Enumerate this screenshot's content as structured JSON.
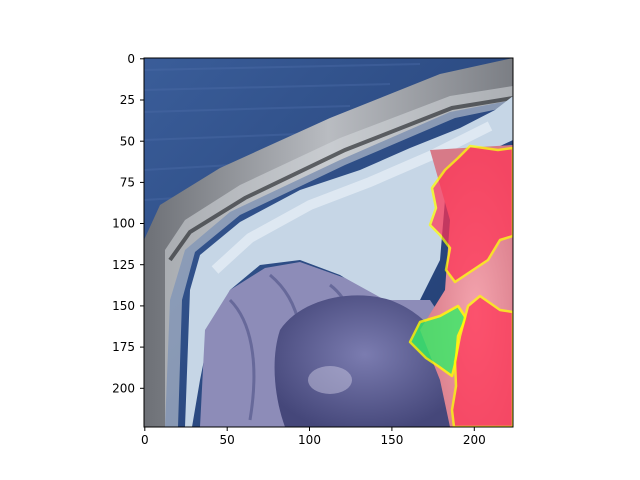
{
  "figure": {
    "type": "image-with-segmentation-overlay",
    "x_ticks": [
      "0",
      "50",
      "100",
      "150",
      "200"
    ],
    "y_ticks": [
      "0",
      "25",
      "50",
      "75",
      "100",
      "125",
      "150",
      "175",
      "200"
    ],
    "xlim": [
      0,
      224
    ],
    "ylim": [
      224,
      0
    ],
    "overlay_colors": {
      "contour": "#ffff00",
      "mask_red": "#ff3355",
      "mask_green": "#33ee66"
    },
    "photo_colors": {
      "background_blue": "#2c4d86",
      "tray_gray": "#8c8e93",
      "tissue_light_blue": "#c6d6e6",
      "tissue_purple": "#5c5e94",
      "tissue_lavender": "#8d8cb8"
    }
  }
}
